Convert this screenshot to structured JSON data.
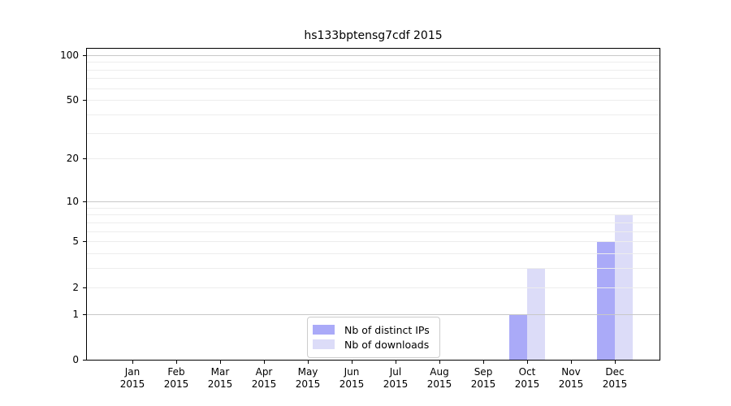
{
  "figure_title": "hs133bptensg7cdf 2015",
  "chart_data": {
    "type": "bar",
    "title": "hs133bptensg7cdf 2015",
    "categories": [
      "Jan 2015",
      "Feb 2015",
      "Mar 2015",
      "Apr 2015",
      "May 2015",
      "Jun 2015",
      "Jul 2015",
      "Aug 2015",
      "Sep 2015",
      "Oct 2015",
      "Nov 2015",
      "Dec 2015"
    ],
    "series": [
      {
        "name": "Nb of distinct IPs",
        "color": "#aaaaf8",
        "values": [
          0,
          0,
          0,
          0,
          0,
          0,
          0,
          0,
          0,
          1,
          0,
          5
        ]
      },
      {
        "name": "Nb of downloads",
        "color": "#dcdcf8",
        "values": [
          0,
          0,
          0,
          0,
          0,
          0,
          0,
          0,
          0,
          3,
          0,
          8
        ]
      }
    ],
    "xlabel": "",
    "ylabel": "",
    "yscale": "log(1+y)",
    "ylim": [
      0,
      110
    ],
    "yticks": [
      0,
      1,
      2,
      5,
      10,
      20,
      50,
      100
    ],
    "grid_major_values": [
      1,
      10,
      100
    ],
    "grid_minor_values": [
      2,
      3,
      4,
      5,
      6,
      7,
      8,
      9,
      20,
      30,
      40,
      50,
      60,
      70,
      80,
      90
    ],
    "grid": "on",
    "legend_position": "lower center",
    "legend_entries": [
      "Nb of distinct IPs",
      "Nb of downloads"
    ]
  },
  "colors": {
    "bar_distinct_ips": "#aaaaf8",
    "bar_downloads": "#dcdcf8",
    "grid_major": "#c8c8c8",
    "grid_minor": "#ededed",
    "frame": "#000000",
    "text": "#000000",
    "legend_border": "#cccccc"
  }
}
